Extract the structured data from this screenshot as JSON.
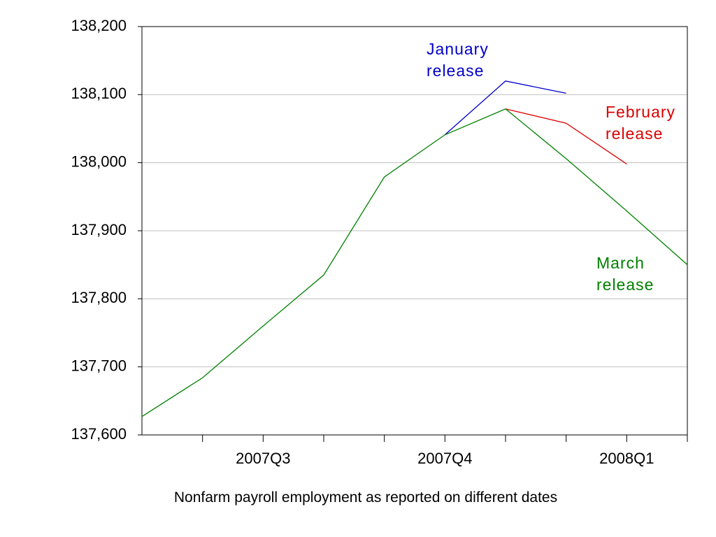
{
  "chart_data": {
    "type": "line",
    "caption": "Nonfarm payroll employment as reported on different dates",
    "categories": [
      null,
      null,
      "2007Q3",
      null,
      null,
      "2007Q4",
      null,
      null,
      "2008Q1",
      null
    ],
    "series": [
      {
        "name": "January release",
        "color": "#0000cc",
        "values": [
          null,
          null,
          null,
          null,
          null,
          138041,
          138120,
          138102,
          null,
          null
        ]
      },
      {
        "name": "February release",
        "color": "#dd0000",
        "values": [
          null,
          null,
          null,
          null,
          null,
          null,
          138079,
          138058,
          137998,
          null
        ]
      },
      {
        "name": "March release",
        "color": "#008000",
        "values": [
          137627,
          137684,
          137760,
          137835,
          137979,
          138041,
          138079,
          138006,
          137929,
          137850
        ]
      }
    ],
    "ylim": [
      137600,
      138200
    ],
    "yticks": [
      {
        "value": 137600,
        "label": "137,600"
      },
      {
        "value": 137700,
        "label": "137,700"
      },
      {
        "value": 137800,
        "label": "137,800"
      },
      {
        "value": 137900,
        "label": "137,900"
      },
      {
        "value": 138000,
        "label": "138,000"
      },
      {
        "value": 138100,
        "label": "138,100"
      },
      {
        "value": 138200,
        "label": "138,200"
      }
    ],
    "grid": true
  }
}
